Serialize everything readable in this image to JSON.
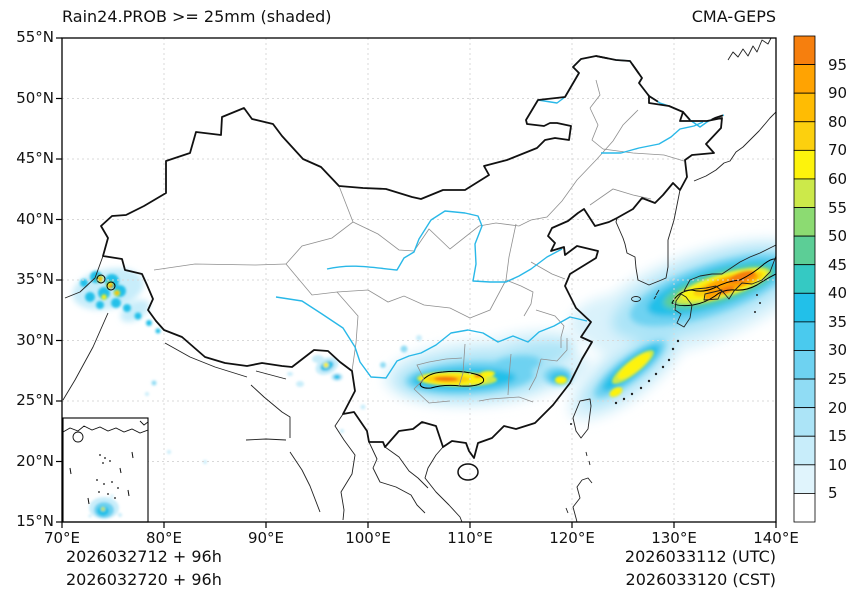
{
  "header": {
    "title": "Rain24.PROB >= 25mm (shaded)",
    "model": "CMA-GEPS"
  },
  "axes": {
    "x_ticks": [
      {
        "lon": 70,
        "label": "70°E"
      },
      {
        "lon": 80,
        "label": "80°E"
      },
      {
        "lon": 90,
        "label": "90°E"
      },
      {
        "lon": 100,
        "label": "100°E"
      },
      {
        "lon": 110,
        "label": "110°E"
      },
      {
        "lon": 120,
        "label": "120°E"
      },
      {
        "lon": 130,
        "label": "130°E"
      },
      {
        "lon": 140,
        "label": "140°E"
      }
    ],
    "y_ticks": [
      {
        "lat": 55,
        "label": "55°N"
      },
      {
        "lat": 50,
        "label": "50°N"
      },
      {
        "lat": 45,
        "label": "45°N"
      },
      {
        "lat": 40,
        "label": "40°N"
      },
      {
        "lat": 35,
        "label": "35°N"
      },
      {
        "lat": 30,
        "label": "30°N"
      },
      {
        "lat": 25,
        "label": "25°N"
      },
      {
        "lat": 20,
        "label": "20°N"
      },
      {
        "lat": 15,
        "label": "15°N"
      }
    ],
    "grid_lons": [
      80,
      90,
      100,
      110,
      120,
      130
    ],
    "grid_lats": [
      20,
      25,
      30,
      35,
      40,
      45,
      50
    ]
  },
  "colorbar": {
    "labels_top_to_bottom": [
      "95",
      "90",
      "80",
      "70",
      "60",
      "55",
      "50",
      "45",
      "40",
      "35",
      "30",
      "25",
      "20",
      "15",
      "10",
      "5"
    ],
    "colors_top_to_bottom": [
      "#F67F0E",
      "#FFA302",
      "#FFBC03",
      "#FCD00E",
      "#FDF30C",
      "#CCE94A",
      "#8CDB72",
      "#5CCE96",
      "#35C9C3",
      "#22C0E9",
      "#4ACAEE",
      "#6ED2F1",
      "#90DCF4",
      "#ACE4F7",
      "#C8EDFA",
      "#E0F4FC",
      "#FFFFFF"
    ]
  },
  "footer": {
    "init_line1": "2026032712 + 96h",
    "init_line2": "2026032720 + 96h",
    "valid_line1": "2026033112 (UTC)",
    "valid_line2": "2026033120 (CST)"
  },
  "chart_data": {
    "type": "filled-contour-map",
    "title": "Rain24.PROB >= 25mm (shaded)",
    "variable": "Probability of 24-h rainfall >= 25 mm",
    "units": "%",
    "model": "CMA-GEPS",
    "extent": {
      "lon": [
        70,
        140
      ],
      "lat": [
        15,
        55
      ]
    },
    "shading_levels": [
      5,
      10,
      15,
      20,
      25,
      30,
      35,
      40,
      45,
      50,
      55,
      60,
      70,
      80,
      90,
      95
    ],
    "init_times": [
      "2026032712 + 96h",
      "2026032720 + 96h"
    ],
    "valid_times": [
      "2026033112 (UTC)",
      "2026033120 (CST)"
    ],
    "high_probability_regions": [
      {
        "name": "Japan / western Honshu-Shikoku band",
        "lon_range": [
          124,
          140
        ],
        "lat_range": [
          30,
          38
        ],
        "peak_percent": 95
      },
      {
        "name": "South China (Guangxi-Hunan-Guizhou-Jiangxi)",
        "lon_range": [
          104,
          120
        ],
        "lat_range": [
          24,
          30
        ],
        "peak_percent": 95
      },
      {
        "name": "Northeast of Taiwan / Ryukyu band",
        "lon_range": [
          121,
          130
        ],
        "lat_range": [
          24,
          31
        ],
        "peak_percent": 70
      },
      {
        "name": "Karakoram / western Tibet cluster",
        "lon_range": [
          71,
          78
        ],
        "lat_range": [
          31,
          37
        ],
        "peak_percent": 95
      },
      {
        "name": "Southeast Tibet (~96E, 28N)",
        "lon_range": [
          94,
          98
        ],
        "lat_range": [
          26,
          29
        ],
        "peak_percent": 60
      },
      {
        "name": "South China Sea (inset map)",
        "lon_range": null,
        "lat_range": null,
        "peak_percent": 50
      }
    ]
  }
}
